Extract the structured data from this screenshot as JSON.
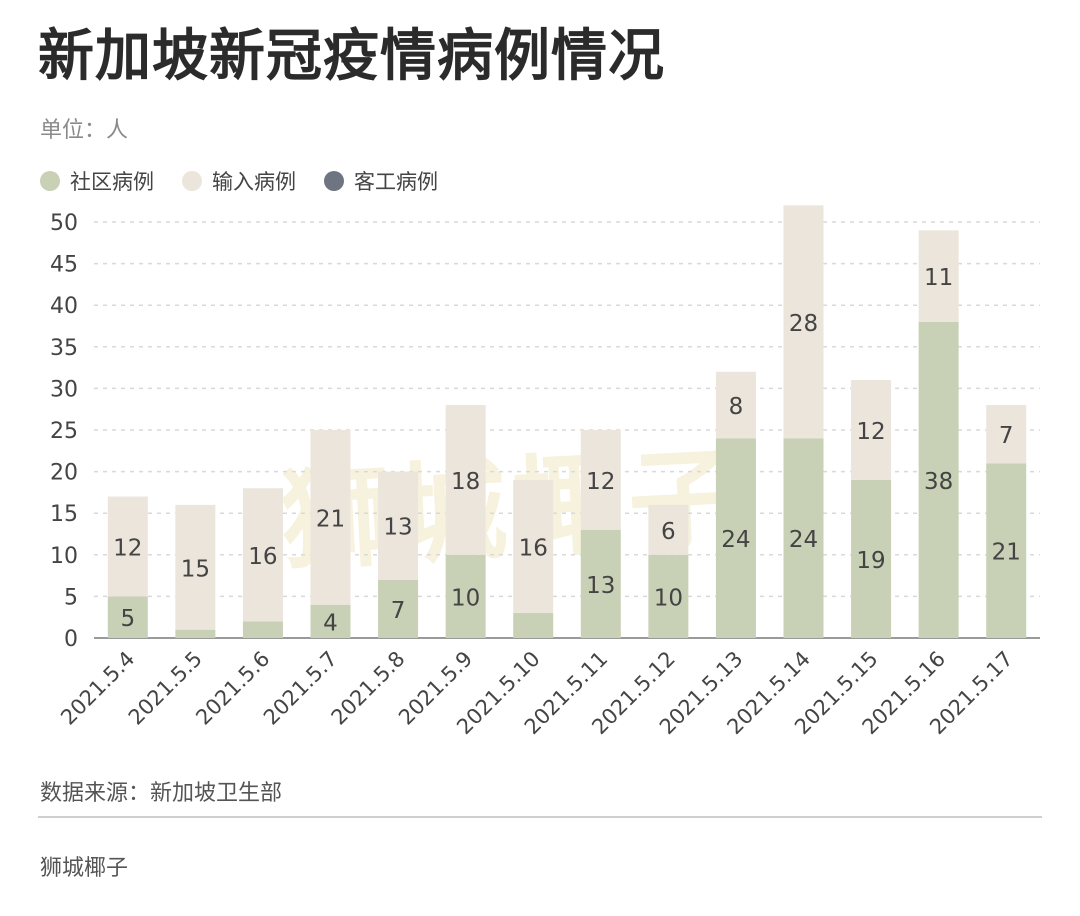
{
  "title": "新加坡新冠疫情病例情况",
  "unit": "单位：人",
  "source": "数据来源：新加坡卫生部",
  "brand": "狮城椰子",
  "watermark": "狮城椰子",
  "colors": {
    "community": "#c8d0b6",
    "imported": "#ebe5dc",
    "worker": "#6e7480",
    "grid": "#d9d9d9",
    "axis": "#555555",
    "label": "#444444"
  },
  "legend": [
    {
      "label": "社区病例",
      "color": "#c8d0b6"
    },
    {
      "label": "输入病例",
      "color": "#ebe5dc"
    },
    {
      "label": "客工病例",
      "color": "#6e7480"
    }
  ],
  "chart_data": {
    "type": "bar",
    "stacked": true,
    "title": "新加坡新冠疫情病例情况",
    "ylabel": "单位：人",
    "xlabel": "",
    "ylim": [
      0,
      50
    ],
    "yticks": [
      0,
      5,
      10,
      15,
      20,
      25,
      30,
      35,
      40,
      45,
      50
    ],
    "grid": true,
    "legend_position": "top-left",
    "categories": [
      "2021.5.4",
      "2021.5.5",
      "2021.5.6",
      "2021.5.7",
      "2021.5.8",
      "2021.5.9",
      "2021.5.10",
      "2021.5.11",
      "2021.5.12",
      "2021.5.13",
      "2021.5.14",
      "2021.5.15",
      "2021.5.16",
      "2021.5.17"
    ],
    "series": [
      {
        "name": "社区病例",
        "values": [
          5,
          1,
          2,
          4,
          7,
          10,
          3,
          13,
          10,
          24,
          24,
          19,
          38,
          21
        ],
        "labels": [
          "5",
          "",
          "",
          "4",
          "7",
          "10",
          "",
          "13",
          "10",
          "24",
          "24",
          "19",
          "38",
          "21"
        ]
      },
      {
        "name": "输入病例",
        "values": [
          12,
          15,
          16,
          21,
          13,
          18,
          16,
          12,
          6,
          8,
          28,
          12,
          11,
          7
        ],
        "labels": [
          "12",
          "15",
          "16",
          "21",
          "13",
          "18",
          "16",
          "12",
          "6",
          "8",
          "28",
          "12",
          "11",
          "7"
        ]
      },
      {
        "name": "客工病例",
        "values": [
          0,
          0,
          0,
          0,
          0,
          0,
          0,
          0,
          0,
          0,
          0,
          0,
          0,
          0
        ],
        "labels": [
          "",
          "",
          "",
          "",
          "",
          "",
          "",
          "",
          "",
          "",
          "",
          "",
          "",
          ""
        ]
      }
    ]
  }
}
